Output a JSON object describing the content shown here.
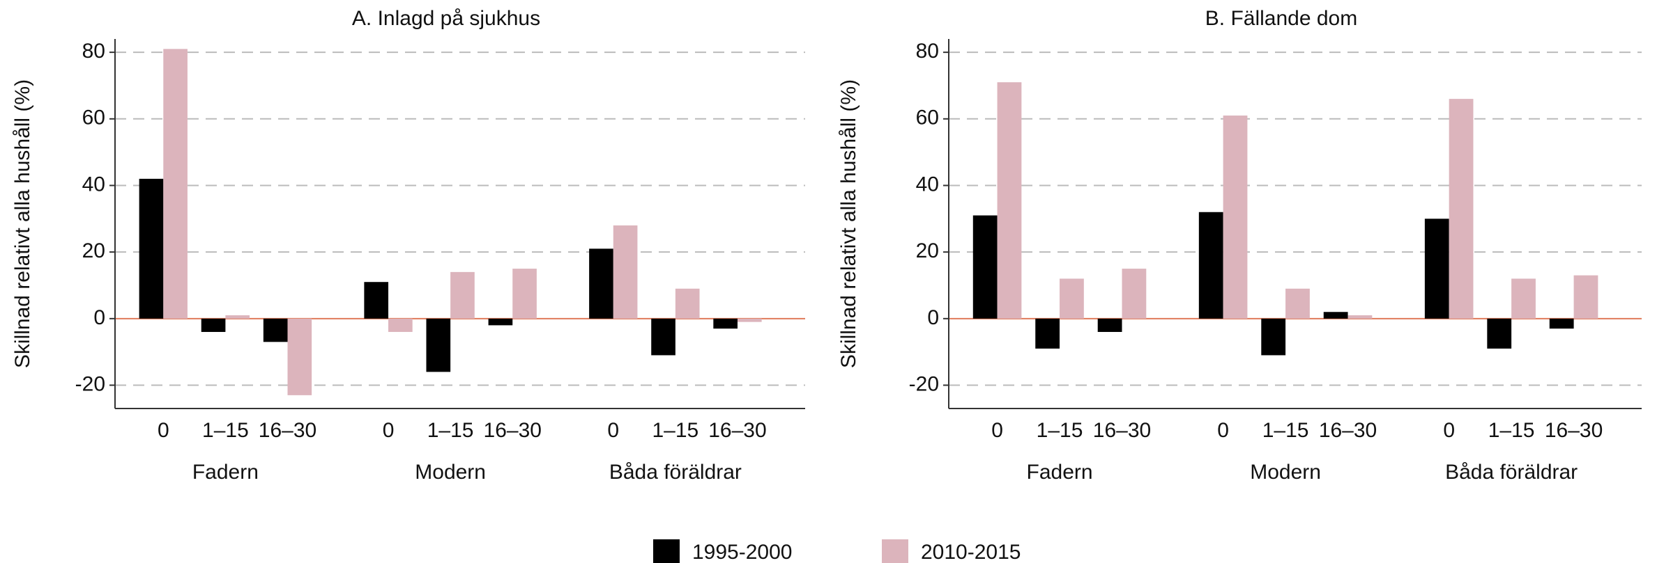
{
  "chart_data": [
    {
      "type": "bar",
      "title": "A. Inlagd på sjukhus",
      "ylabel": "Skillnad relativt alla hushåll (%)",
      "categories": [
        "0",
        "1–15",
        "16–30",
        "0",
        "1–15",
        "16–30",
        "0",
        "1–15",
        "16–30"
      ],
      "groups": [
        "Fadern",
        "Modern",
        "Båda föräldrar"
      ],
      "series": [
        {
          "name": "1995-2000",
          "color": "#000000",
          "values": [
            42,
            -4,
            -7,
            11,
            -16,
            -2,
            21,
            -11,
            -3
          ]
        },
        {
          "name": "2010-2015",
          "color": "#dcb4bc",
          "values": [
            81,
            1,
            -23,
            -4,
            14,
            15,
            28,
            9,
            -1
          ]
        }
      ],
      "ylim": [
        -27,
        84
      ],
      "yticks": [
        -20,
        0,
        20,
        40,
        60,
        80
      ],
      "grid": true
    },
    {
      "type": "bar",
      "title": "B. Fällande dom",
      "ylabel": "Skillnad relativt alla hushåll (%)",
      "categories": [
        "0",
        "1–15",
        "16–30",
        "0",
        "1–15",
        "16–30",
        "0",
        "1–15",
        "16–30"
      ],
      "groups": [
        "Fadern",
        "Modern",
        "Båda föräldrar"
      ],
      "series": [
        {
          "name": "1995-2000",
          "color": "#000000",
          "values": [
            31,
            -9,
            -4,
            32,
            -11,
            2,
            30,
            -9,
            -3
          ]
        },
        {
          "name": "2010-2015",
          "color": "#dcb4bc",
          "values": [
            71,
            12,
            15,
            61,
            9,
            1,
            66,
            12,
            13
          ]
        }
      ],
      "ylim": [
        -27,
        84
      ],
      "yticks": [
        -20,
        0,
        20,
        40,
        60,
        80
      ],
      "grid": true
    }
  ]
}
